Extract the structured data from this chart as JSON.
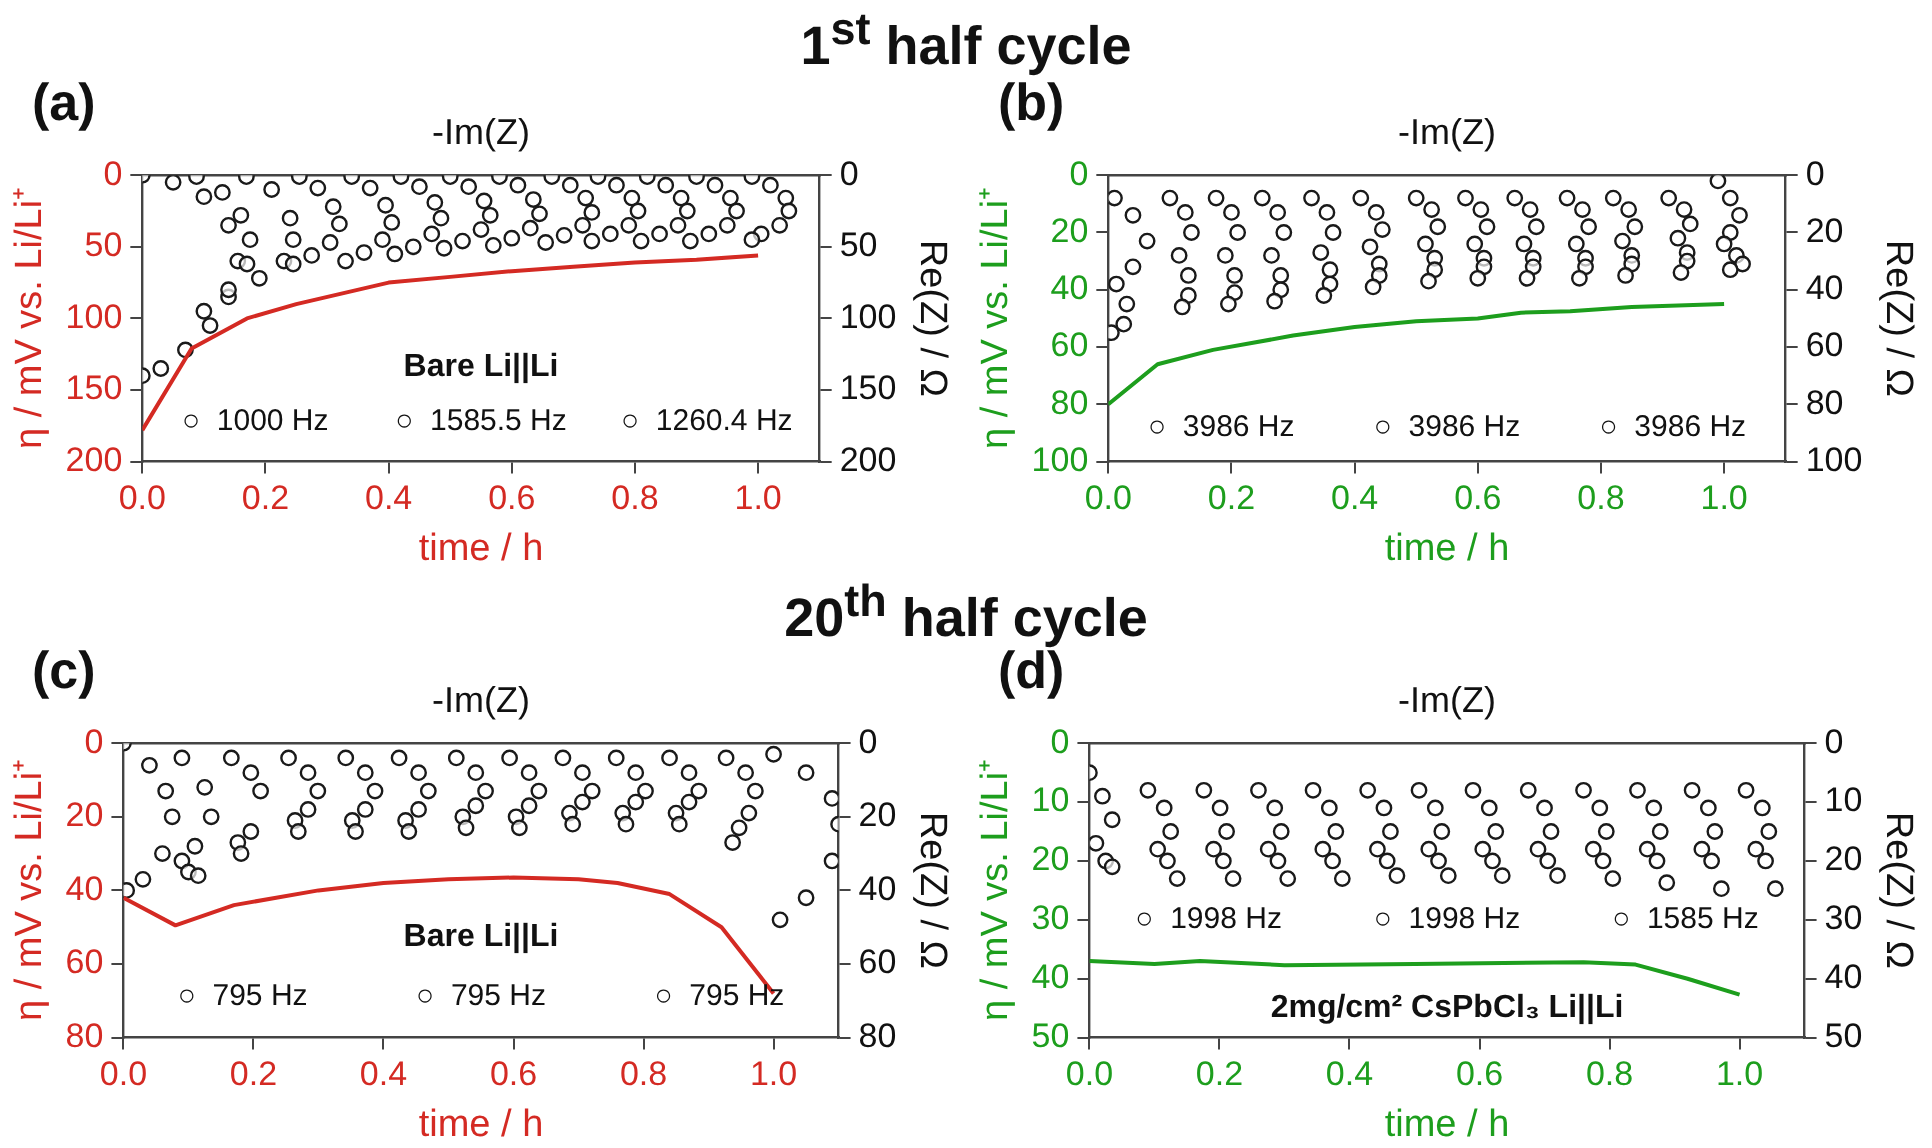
{
  "chart_data": [
    {
      "type": "line",
      "title": "1$^{st}$ half cycle",
      "xlabel": "time / h",
      "ylabel": "η / mV vs. Li/Li⁺",
      "y2label": "Re(Z) / Ω",
      "x2label": "-Im(Z)",
      "annotations": [
        "(a)",
        "○  1000 Hz",
        "○  1585.5 Hz",
        "○  1260.4 Hz",
        "Bare Li||Li"
      ],
      "xlim": [
        0,
        1.1
      ],
      "xticks": [
        {
          "value": 0,
          "label": "0.0"
        },
        {
          "value": 0.2,
          "label": "0.2"
        },
        {
          "value": 0.4,
          "label": "0.4"
        },
        {
          "value": 0.6,
          "label": "0.6"
        },
        {
          "value": 0.8,
          "label": "0.8"
        },
        {
          "value": 1,
          "label": "1.0"
        }
      ],
      "ylim": [
        200,
        0
      ],
      "yticks": [
        0,
        50,
        100,
        150,
        200
      ],
      "y2lim": [
        200,
        0
      ],
      "y2ticks": [
        0,
        50,
        100,
        150,
        200
      ],
      "series": [
        {
          "marker": "none",
          "color": "#d42a23",
          "x": [
            0,
            0.08,
            0.17,
            0.25,
            0.4,
            0.5,
            0.6,
            0.7,
            0.8,
            0.9,
            1.0
          ],
          "values": [
            178,
            121,
            100,
            90,
            75,
            71,
            67,
            64,
            61,
            59,
            56
          ]
        },
        {
          "type": "scatter",
          "marker": "circle",
          "axis": "y2",
          "color": "#1a1a1a",
          "x": [
            0,
            0.05,
            0.1,
            0.14,
            0.155,
            0.14,
            0.11,
            0.07,
            0.03,
            0,
            0.088,
            0.13,
            0.16,
            0.175,
            0.17,
            0.14,
            0.1,
            0.169,
            0.21,
            0.24,
            0.245,
            0.23,
            0.19,
            0.255,
            0.285,
            0.31,
            0.32,
            0.305,
            0.275,
            0.245,
            0.34,
            0.37,
            0.395,
            0.405,
            0.39,
            0.36,
            0.33,
            0.42,
            0.45,
            0.475,
            0.485,
            0.47,
            0.44,
            0.41,
            0.5,
            0.53,
            0.555,
            0.565,
            0.55,
            0.52,
            0.49,
            0.58,
            0.61,
            0.635,
            0.645,
            0.63,
            0.6,
            0.57,
            0.665,
            0.695,
            0.72,
            0.73,
            0.715,
            0.685,
            0.655,
            0.74,
            0.77,
            0.795,
            0.805,
            0.79,
            0.76,
            0.73,
            0.82,
            0.85,
            0.875,
            0.885,
            0.87,
            0.84,
            0.81,
            0.9,
            0.93,
            0.955,
            0.965,
            0.95,
            0.92,
            0.89,
            0.99,
            1.02,
            1.045,
            1.05,
            1.035,
            1.005,
            0.99
          ],
          "values": [
            0,
            5,
            15,
            35,
            60,
            85,
            105,
            122,
            135,
            140,
            1,
            12,
            28,
            45,
            62,
            80,
            95,
            1,
            10,
            30,
            45,
            60,
            72,
            1,
            9,
            22,
            34,
            47,
            56,
            62,
            1,
            9,
            21,
            33,
            45,
            54,
            60,
            1,
            8,
            19,
            30,
            41,
            50,
            55,
            1,
            8,
            18,
            28,
            38,
            46,
            51,
            1,
            7,
            17,
            27,
            37,
            44,
            49,
            1,
            7,
            16,
            26,
            35,
            42,
            47,
            1,
            7,
            16,
            25,
            35,
            41,
            46,
            1,
            7,
            16,
            25,
            35,
            41,
            46,
            1,
            7,
            16,
            25,
            35,
            41,
            46,
            1,
            7,
            16,
            25,
            35,
            41,
            45
          ]
        }
      ]
    },
    {
      "type": "line",
      "xlabel": "time / h",
      "ylabel": "η / mV vs. Li/Li⁺",
      "y2label": "Re(Z) / Ω",
      "x2label": "-Im(Z)",
      "annotations": [
        "(b)",
        "○  3986 Hz",
        "○  3986 Hz",
        "○  3986 Hz"
      ],
      "xlim": [
        0,
        1.1
      ],
      "xticks": [
        {
          "value": 0,
          "label": "0.0"
        },
        {
          "value": 0.2,
          "label": "0.2"
        },
        {
          "value": 0.4,
          "label": "0.4"
        },
        {
          "value": 0.6,
          "label": "0.6"
        },
        {
          "value": 0.8,
          "label": "0.8"
        },
        {
          "value": 1,
          "label": "1.0"
        }
      ],
      "ylim": [
        100,
        0
      ],
      "yticks": [
        0,
        20,
        40,
        60,
        80,
        100
      ],
      "y2lim": [
        100,
        0
      ],
      "y2ticks": [
        0,
        20,
        40,
        60,
        80,
        100
      ],
      "series": [
        {
          "marker": "none",
          "color": "#1d9e1d",
          "x": [
            0,
            0.08,
            0.17,
            0.3,
            0.4,
            0.5,
            0.6,
            0.67,
            0.75,
            0.85,
            1.0
          ],
          "values": [
            80,
            66,
            61,
            56,
            53,
            51,
            50,
            48,
            47.5,
            46,
            45
          ]
        },
        {
          "type": "scatter",
          "marker": "circle",
          "axis": "y2",
          "color": "#1a1a1a",
          "x": [
            0.01,
            0.04,
            0.063,
            0.04,
            0.013,
            0.03,
            0.025,
            0.005,
            0.1,
            0.125,
            0.135,
            0.115,
            0.13,
            0.13,
            0.12,
            0.175,
            0.2,
            0.21,
            0.19,
            0.205,
            0.205,
            0.195,
            0.25,
            0.275,
            0.285,
            0.265,
            0.28,
            0.28,
            0.27,
            0.33,
            0.355,
            0.365,
            0.345,
            0.36,
            0.36,
            0.35,
            0.41,
            0.435,
            0.445,
            0.425,
            0.44,
            0.44,
            0.43,
            0.5,
            0.525,
            0.535,
            0.515,
            0.53,
            0.53,
            0.52,
            0.58,
            0.605,
            0.615,
            0.595,
            0.61,
            0.61,
            0.6,
            0.66,
            0.685,
            0.695,
            0.675,
            0.69,
            0.69,
            0.68,
            0.745,
            0.77,
            0.78,
            0.76,
            0.775,
            0.775,
            0.765,
            0.82,
            0.845,
            0.855,
            0.835,
            0.85,
            0.85,
            0.84,
            0.91,
            0.935,
            0.945,
            0.925,
            0.94,
            0.94,
            0.93,
            0.99,
            1.01,
            1.025,
            1.01,
            1.0,
            1.02,
            1.03,
            1.01
          ],
          "values": [
            8,
            14,
            23,
            32,
            38,
            45,
            52,
            55,
            8,
            13,
            20,
            28,
            35,
            42,
            46,
            8,
            13,
            20,
            28,
            35,
            41,
            45,
            8,
            13,
            20,
            28,
            35,
            40,
            44,
            8,
            13,
            20,
            27,
            33,
            38,
            42,
            8,
            13,
            19,
            25,
            31,
            35,
            39,
            8,
            12,
            18,
            24,
            29,
            33,
            37,
            8,
            12,
            18,
            24,
            29,
            32,
            36,
            8,
            12,
            18,
            24,
            29,
            32,
            36,
            8,
            12,
            18,
            24,
            29,
            32,
            36,
            8,
            12,
            18,
            23,
            28,
            31,
            35,
            8,
            12,
            17,
            22,
            27,
            30,
            34,
            2,
            8,
            14,
            20,
            24,
            28,
            31,
            33
          ]
        }
      ]
    },
    {
      "type": "line",
      "title": "20$^{th}$ half cycle",
      "xlabel": "time / h",
      "ylabel": "η / mV vs. Li/Li⁺",
      "y2label": "Re(Z) / Ω",
      "x2label": "-Im(Z)",
      "annotations": [
        "(c)",
        "○  795 Hz",
        "○  795 Hz",
        "○  795 Hz",
        "Bare Li||Li"
      ],
      "xlim": [
        0,
        1.1
      ],
      "xticks": [
        {
          "value": 0,
          "label": "0.0"
        },
        {
          "value": 0.2,
          "label": "0.2"
        },
        {
          "value": 0.4,
          "label": "0.4"
        },
        {
          "value": 0.6,
          "label": "0.6"
        },
        {
          "value": 0.8,
          "label": "0.8"
        },
        {
          "value": 1,
          "label": "1.0"
        }
      ],
      "ylim": [
        80,
        0
      ],
      "yticks": [
        0,
        20,
        40,
        60,
        80
      ],
      "y2lim": [
        80,
        0
      ],
      "y2ticks": [
        0,
        20,
        40,
        60,
        80
      ],
      "series": [
        {
          "marker": "none",
          "color": "#d42a23",
          "x": [
            0,
            0.08,
            0.17,
            0.3,
            0.4,
            0.5,
            0.6,
            0.7,
            0.76,
            0.84,
            0.92,
            1.0
          ],
          "values": [
            42,
            49.5,
            44,
            40,
            38,
            37,
            36.5,
            37,
            38,
            41,
            50,
            68
          ]
        },
        {
          "type": "scatter",
          "marker": "circle",
          "axis": "y2",
          "color": "#1a1a1a",
          "x": [
            0,
            0.04,
            0.065,
            0.075,
            0.06,
            0.03,
            0.005,
            0.09,
            0.125,
            0.135,
            0.11,
            0.09,
            0.1,
            0.115,
            0.166,
            0.196,
            0.211,
            0.196,
            0.176,
            0.181,
            0.254,
            0.284,
            0.299,
            0.284,
            0.264,
            0.269,
            0.342,
            0.372,
            0.387,
            0.372,
            0.352,
            0.357,
            0.424,
            0.454,
            0.469,
            0.454,
            0.434,
            0.439,
            0.512,
            0.542,
            0.557,
            0.542,
            0.522,
            0.527,
            0.594,
            0.624,
            0.639,
            0.624,
            0.604,
            0.609,
            0.676,
            0.706,
            0.721,
            0.706,
            0.686,
            0.691,
            0.758,
            0.788,
            0.803,
            0.788,
            0.768,
            0.773,
            0.84,
            0.87,
            0.885,
            0.87,
            0.85,
            0.855,
            0.927,
            0.957,
            0.972,
            0.962,
            0.947,
            0.937,
            1.0,
            1.05,
            1.09,
            1.1,
            1.09,
            1.05,
            1.01
          ],
          "values": [
            0,
            6,
            13,
            20,
            30,
            37,
            40,
            4,
            12,
            20,
            28,
            32,
            35,
            36,
            4,
            8,
            13,
            24,
            27,
            30,
            4,
            8,
            13,
            18,
            21,
            24,
            4,
            8,
            13,
            18,
            21,
            24,
            4,
            8,
            13,
            18,
            21,
            24,
            4,
            8,
            13,
            17,
            20,
            23,
            4,
            8,
            13,
            17,
            20,
            23,
            4,
            8,
            13,
            16,
            19,
            22,
            4,
            8,
            13,
            16,
            19,
            22,
            4,
            8,
            13,
            16,
            19,
            22,
            4,
            8,
            13,
            19,
            23,
            27,
            3,
            8,
            15,
            22,
            32,
            42,
            48
          ]
        }
      ]
    },
    {
      "type": "line",
      "xlabel": "time / h",
      "ylabel": "η / mV vs. Li/Li⁺",
      "y2label": "Re(Z) / Ω",
      "x2label": "-Im(Z)",
      "annotations": [
        "(d)",
        "○  1998 Hz",
        "○  1998 Hz",
        "○  1585 Hz",
        "2mg/cm² CsPbCl₃ Li||Li"
      ],
      "xlim": [
        0,
        1.1
      ],
      "xticks": [
        {
          "value": 0,
          "label": "0.0"
        },
        {
          "value": 0.2,
          "label": "0.2"
        },
        {
          "value": 0.4,
          "label": "0.4"
        },
        {
          "value": 0.6,
          "label": "0.6"
        },
        {
          "value": 0.8,
          "label": "0.8"
        },
        {
          "value": 1,
          "label": "1.0"
        }
      ],
      "ylim": [
        50,
        0
      ],
      "yticks": [
        0,
        10,
        20,
        30,
        40,
        50
      ],
      "y2lim": [
        50,
        0
      ],
      "y2ticks": [
        0,
        10,
        20,
        30,
        40,
        50
      ],
      "series": [
        {
          "marker": "none",
          "color": "#1d9e1d",
          "x": [
            0,
            0.1,
            0.17,
            0.3,
            0.5,
            0.76,
            0.84,
            0.92,
            1.0
          ],
          "values": [
            37,
            37.5,
            37,
            37.7,
            37.5,
            37.2,
            37.6,
            40,
            42.7
          ]
        },
        {
          "type": "scatter",
          "marker": "circle",
          "axis": "y2",
          "color": "#1a1a1a",
          "x": [
            0,
            0.02,
            0.035,
            0.01,
            0.025,
            0.035,
            0.09,
            0.115,
            0.125,
            0.105,
            0.12,
            0.135,
            0.176,
            0.201,
            0.211,
            0.191,
            0.206,
            0.221,
            0.26,
            0.285,
            0.295,
            0.275,
            0.29,
            0.305,
            0.344,
            0.369,
            0.379,
            0.359,
            0.374,
            0.389,
            0.428,
            0.453,
            0.463,
            0.443,
            0.458,
            0.473,
            0.507,
            0.532,
            0.542,
            0.522,
            0.537,
            0.552,
            0.59,
            0.615,
            0.625,
            0.605,
            0.62,
            0.635,
            0.675,
            0.7,
            0.71,
            0.69,
            0.705,
            0.72,
            0.76,
            0.785,
            0.795,
            0.775,
            0.79,
            0.805,
            0.843,
            0.868,
            0.878,
            0.858,
            0.873,
            0.888,
            0.927,
            0.952,
            0.962,
            0.942,
            0.957,
            0.972,
            1.01,
            1.035,
            1.045,
            1.025,
            1.04,
            1.055
          ],
          "values": [
            5,
            9,
            13,
            17,
            20,
            21,
            8,
            11,
            15,
            18,
            20,
            23,
            8,
            11,
            15,
            18,
            20,
            23,
            8,
            11,
            15,
            18,
            20,
            23,
            8,
            11,
            15,
            18,
            20,
            23,
            8,
            11,
            15,
            18,
            20,
            22.5,
            8,
            11,
            15,
            18,
            20,
            22.5,
            8,
            11,
            15,
            18,
            20,
            22.5,
            8,
            11,
            15,
            18,
            20,
            22.5,
            8,
            11,
            15,
            18,
            20,
            23,
            8,
            11,
            15,
            18,
            20,
            23.7,
            8,
            11,
            15,
            18,
            20,
            24.7,
            8,
            11,
            15,
            18,
            20,
            24.7
          ]
        }
      ]
    }
  ]
}
